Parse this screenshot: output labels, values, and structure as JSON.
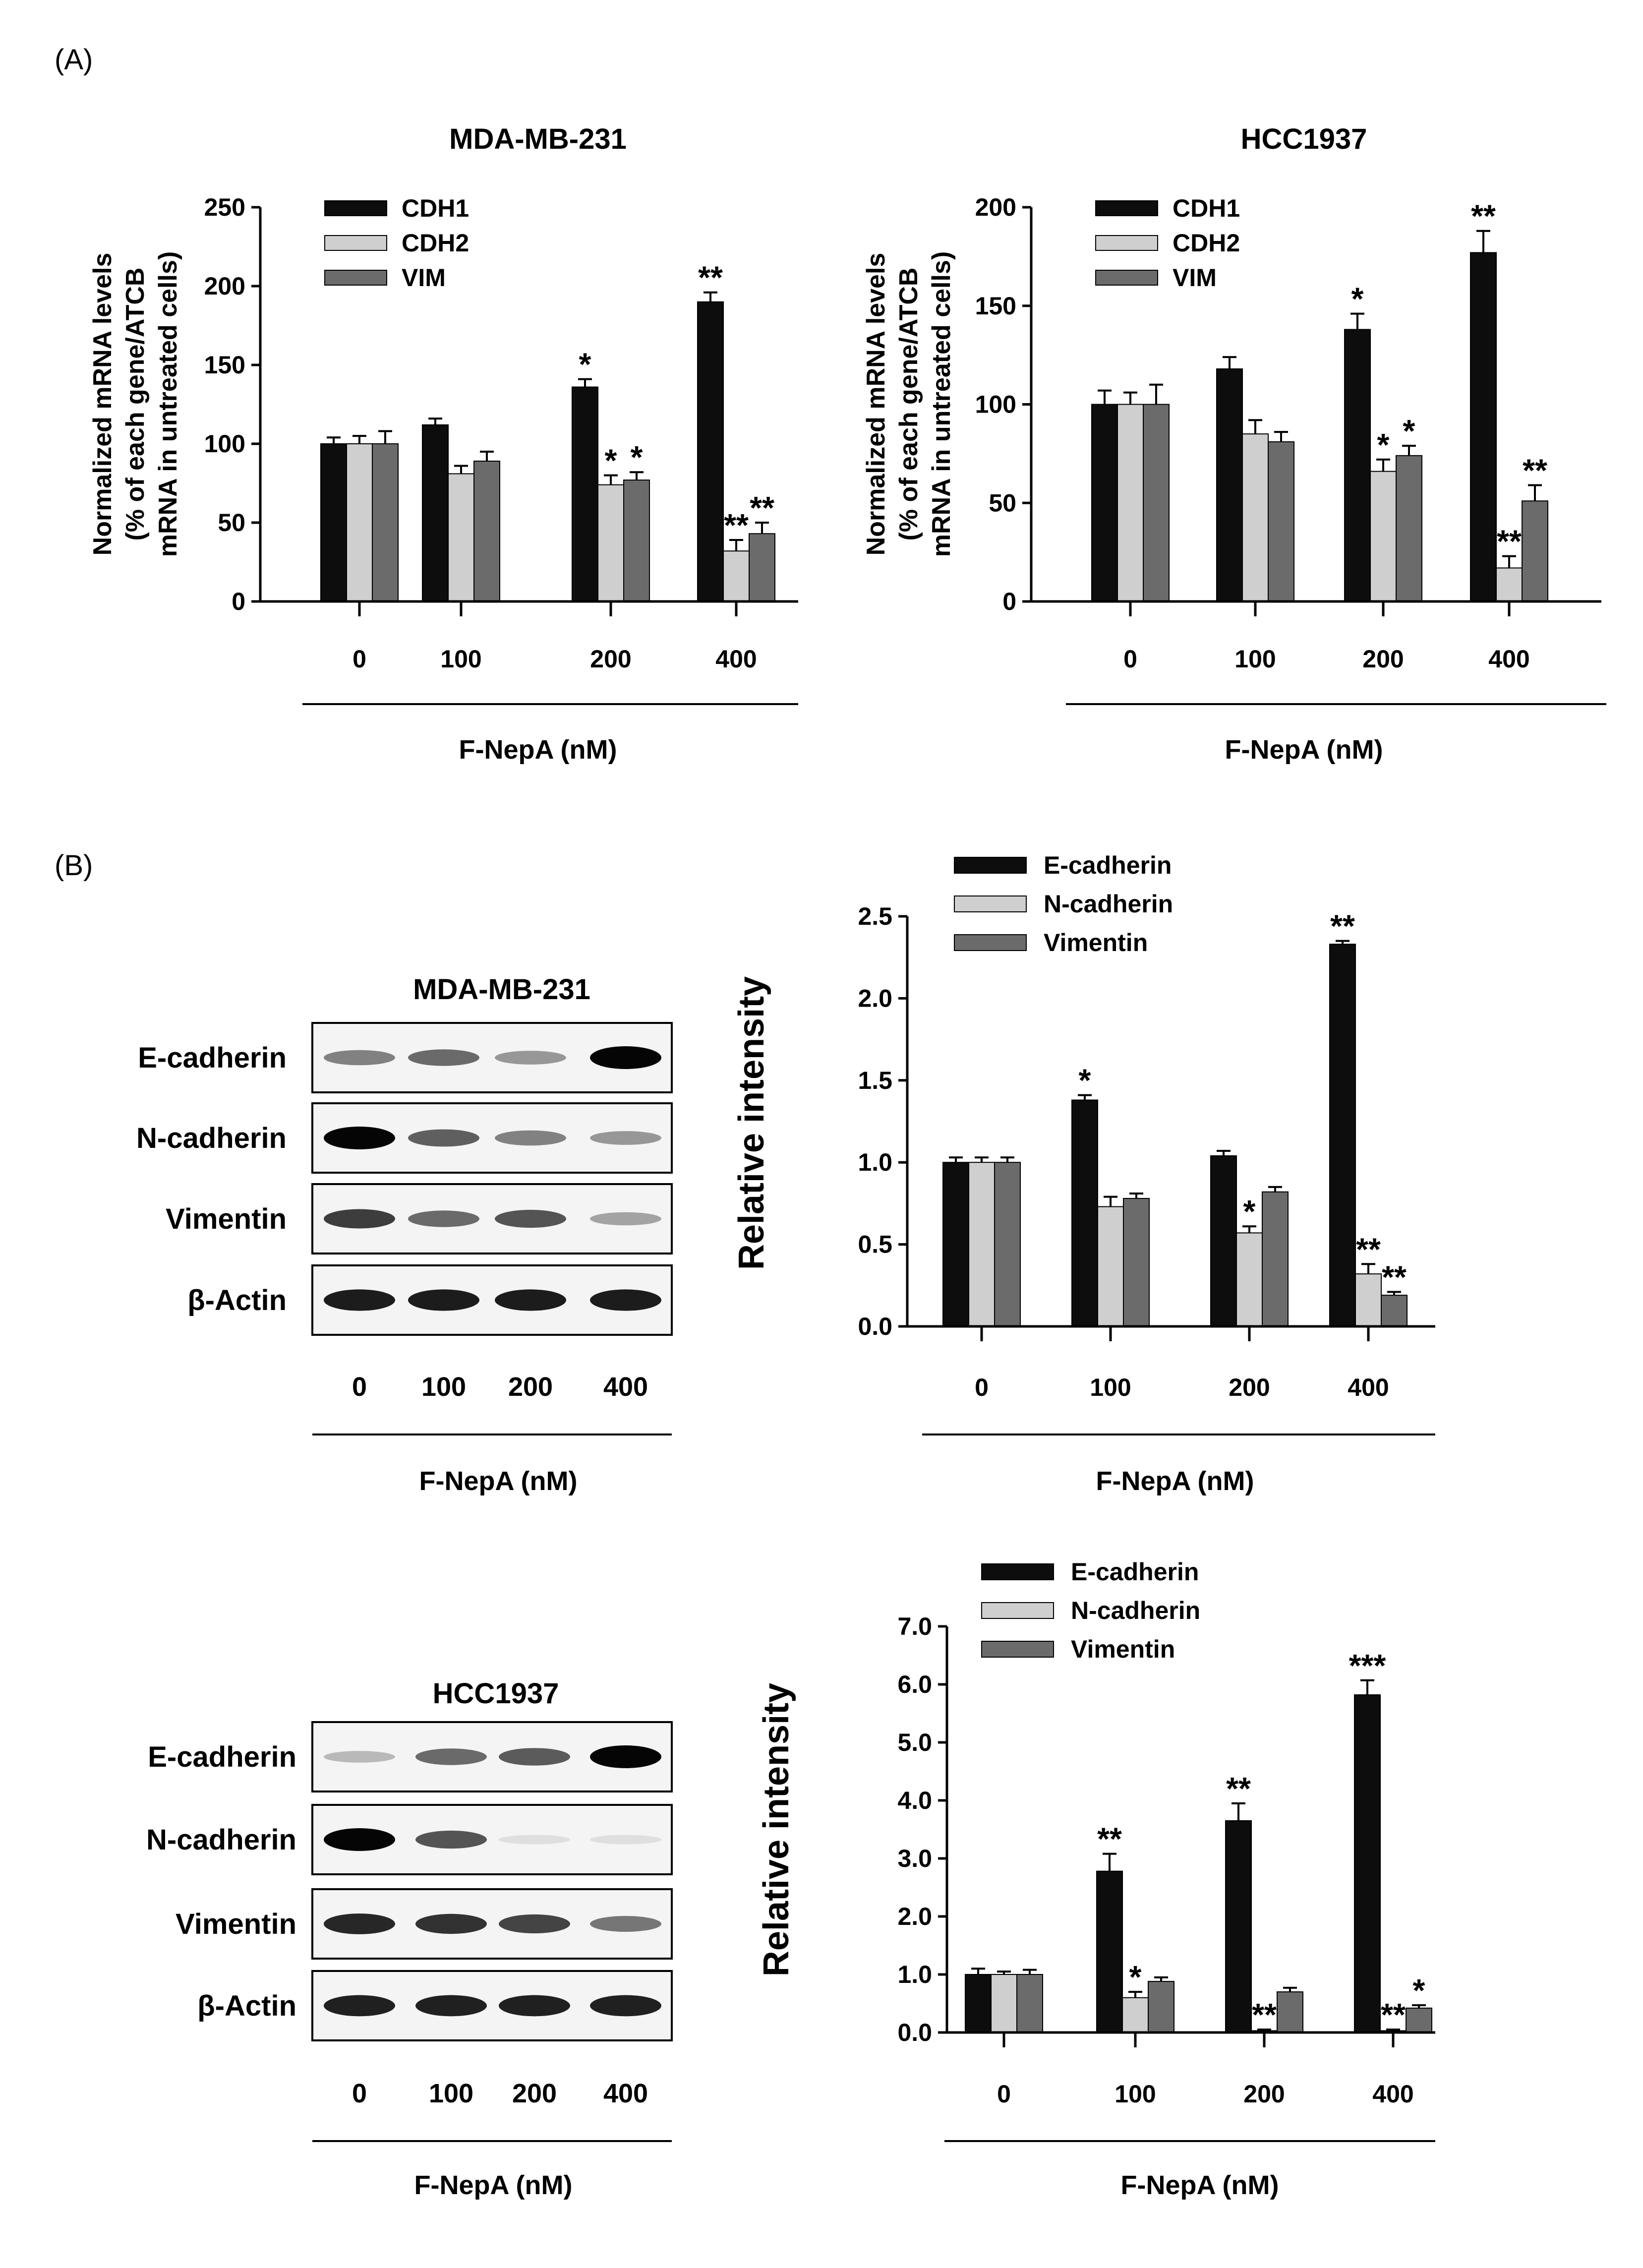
{
  "panels": {
    "a": "(A)",
    "b": "(B)"
  },
  "colors": {
    "series": [
      "#0d0d0d",
      "#cfcfcf",
      "#6b6b6b"
    ]
  },
  "western_blots": [
    {
      "title": "MDA-MB-231",
      "rows": [
        "E-cadherin",
        "N-cadherin",
        "Vimentin",
        "β-Actin"
      ],
      "lanes": [
        "0",
        "100",
        "200",
        "400"
      ],
      "xlabel": "F-NepA (nM)"
    },
    {
      "title": "HCC1937",
      "rows": [
        "E-cadherin",
        "N-cadherin",
        "Vimentin",
        "β-Actin"
      ],
      "lanes": [
        "0",
        "100",
        "200",
        "400"
      ],
      "xlabel": "F-NepA (nM)"
    }
  ],
  "chart_data": [
    {
      "type": "bar",
      "title": "MDA-MB-231",
      "categories": [
        "0",
        "100",
        "200",
        "400"
      ],
      "series": [
        {
          "name": "CDH1",
          "values": [
            100,
            112,
            136,
            190
          ],
          "errors": [
            4,
            4,
            5,
            6
          ],
          "sig": [
            "",
            "",
            "*",
            "**"
          ]
        },
        {
          "name": "CDH2",
          "values": [
            100,
            81,
            74,
            32
          ],
          "errors": [
            5,
            5,
            6,
            7
          ],
          "sig": [
            "",
            "",
            "*",
            "**"
          ]
        },
        {
          "name": "VIM",
          "values": [
            100,
            89,
            77,
            43
          ],
          "errors": [
            8,
            6,
            5,
            7
          ],
          "sig": [
            "",
            "",
            "*",
            "**"
          ]
        }
      ],
      "ylim": [
        0,
        250
      ],
      "yticks": [
        0,
        50,
        100,
        150,
        200,
        250
      ],
      "ylabel": [
        "Normalized  mRNA levels",
        "(% of each gene/ATCB",
        "mRNA in untreated cells)"
      ],
      "xlabel": "F-NepA (nM)",
      "legend": "top-left"
    },
    {
      "type": "bar",
      "title": "HCC1937",
      "categories": [
        "0",
        "100",
        "200",
        "400"
      ],
      "series": [
        {
          "name": "CDH1",
          "values": [
            100,
            118,
            138,
            177
          ],
          "errors": [
            7,
            6,
            8,
            11
          ],
          "sig": [
            "",
            "",
            "*",
            "**"
          ]
        },
        {
          "name": "CDH2",
          "values": [
            100,
            85,
            66,
            17
          ],
          "errors": [
            6,
            7,
            6,
            6
          ],
          "sig": [
            "",
            "",
            "*",
            "**"
          ]
        },
        {
          "name": "VIM",
          "values": [
            100,
            81,
            74,
            51
          ],
          "errors": [
            10,
            5,
            5,
            8
          ],
          "sig": [
            "",
            "",
            "*",
            "**"
          ]
        }
      ],
      "ylim": [
        0,
        200
      ],
      "yticks": [
        0,
        50,
        100,
        150,
        200
      ],
      "ylabel": [
        "Normalized  mRNA levels",
        "(% of each gene/ATCB",
        "mRNA in untreated cells)"
      ],
      "xlabel": "F-NepA (nM)",
      "legend": "top-left"
    },
    {
      "type": "bar",
      "title": "",
      "categories": [
        "0",
        "100",
        "200",
        "400"
      ],
      "series": [
        {
          "name": "E-cadherin",
          "values": [
            1.0,
            1.38,
            1.04,
            2.33
          ],
          "errors": [
            0.03,
            0.03,
            0.03,
            0.02
          ],
          "sig": [
            "",
            "*",
            "",
            "**"
          ]
        },
        {
          "name": "N-cadherin",
          "values": [
            1.0,
            0.73,
            0.57,
            0.32
          ],
          "errors": [
            0.03,
            0.06,
            0.04,
            0.06
          ],
          "sig": [
            "",
            "",
            "*",
            "**"
          ]
        },
        {
          "name": "Vimentin",
          "values": [
            1.0,
            0.78,
            0.82,
            0.19
          ],
          "errors": [
            0.03,
            0.03,
            0.03,
            0.02
          ],
          "sig": [
            "",
            "",
            "",
            "**"
          ]
        }
      ],
      "ylim": [
        0,
        2.5
      ],
      "yticks": [
        "0.0",
        "0.5",
        "1.0",
        "1.5",
        "2.0",
        "2.5"
      ],
      "ylabel": "Relative intensity",
      "xlabel": "F-NepA (nM)",
      "legend": "top-left"
    },
    {
      "type": "bar",
      "title": "",
      "categories": [
        "0",
        "100",
        "200",
        "400"
      ],
      "series": [
        {
          "name": "E-cadherin",
          "values": [
            1.0,
            2.78,
            3.65,
            5.82
          ],
          "errors": [
            0.1,
            0.3,
            0.3,
            0.25
          ],
          "sig": [
            "",
            "**",
            "**",
            "***"
          ]
        },
        {
          "name": "N-cadherin",
          "values": [
            1.0,
            0.6,
            0.03,
            0.03
          ],
          "errors": [
            0.05,
            0.1,
            0.02,
            0.02
          ],
          "sig": [
            "",
            "*",
            "**",
            "**"
          ]
        },
        {
          "name": "Vimentin",
          "values": [
            1.0,
            0.88,
            0.7,
            0.42
          ],
          "errors": [
            0.08,
            0.07,
            0.07,
            0.05
          ],
          "sig": [
            "",
            "",
            "",
            "*"
          ]
        }
      ],
      "ylim": [
        0,
        7.0
      ],
      "yticks": [
        "0.0",
        "1.0",
        "2.0",
        "3.0",
        "4.0",
        "5.0",
        "6.0",
        "7.0"
      ],
      "ylabel": "Relative intensity",
      "xlabel": "F-NepA (nM)",
      "legend": "top-left"
    }
  ]
}
